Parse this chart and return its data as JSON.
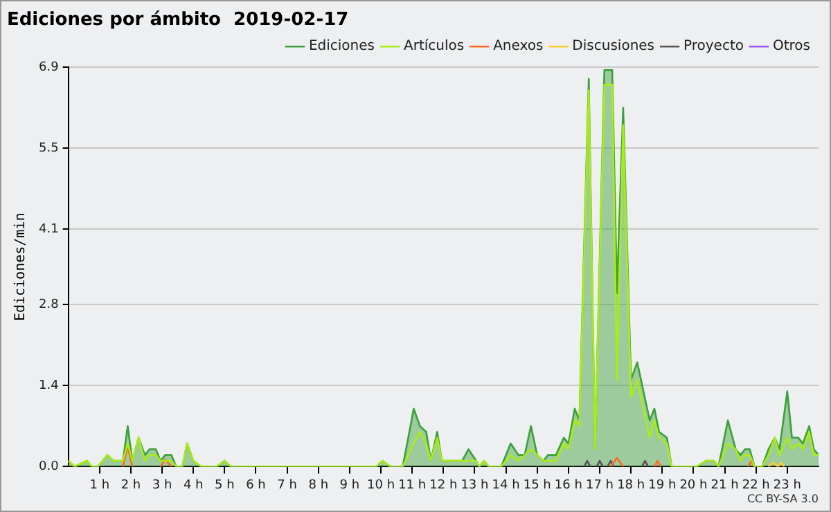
{
  "chart_data": {
    "type": "line",
    "title": "Ediciones por ámbito  2019-02-17",
    "ylabel": "Ediciones/min",
    "xlim": [
      0,
      24
    ],
    "xticks": [
      {
        "value": 1,
        "label": "1 h"
      },
      {
        "value": 2,
        "label": "2 h"
      },
      {
        "value": 3,
        "label": "3 h"
      },
      {
        "value": 4,
        "label": "4 h"
      },
      {
        "value": 5,
        "label": "5 h"
      },
      {
        "value": 6,
        "label": "6 h"
      },
      {
        "value": 7,
        "label": "7 h"
      },
      {
        "value": 8,
        "label": "8 h"
      },
      {
        "value": 9,
        "label": "9 h"
      },
      {
        "value": 10,
        "label": "10 h"
      },
      {
        "value": 11,
        "label": "11 h"
      },
      {
        "value": 12,
        "label": "12 h"
      },
      {
        "value": 13,
        "label": "13 h"
      },
      {
        "value": 14,
        "label": "14 h"
      },
      {
        "value": 15,
        "label": "15 h"
      },
      {
        "value": 16,
        "label": "16 h"
      },
      {
        "value": 17,
        "label": "17 h"
      },
      {
        "value": 18,
        "label": "18 h"
      },
      {
        "value": 19,
        "label": "19 h"
      },
      {
        "value": 20,
        "label": "20 h"
      },
      {
        "value": 21,
        "label": "21 h"
      },
      {
        "value": 22,
        "label": "22 h"
      },
      {
        "value": 23,
        "label": "23 h"
      }
    ],
    "ylim": [
      0,
      6.9
    ],
    "yticks": [
      {
        "value": 0,
        "label": "0.0"
      },
      1.4,
      2.8,
      4.1,
      5.5,
      6.9
    ],
    "grid": "y",
    "legend": "top right",
    "marker": "none",
    "annotations": [
      "CC BY-SA 3.0"
    ],
    "series": [
      {
        "name": "Ediciones",
        "type": "area",
        "color": "#3aa03a",
        "x": [
          0,
          0.2,
          0.6,
          0.75,
          0.95,
          1.25,
          1.45,
          1.75,
          1.9,
          2.05,
          2.25,
          2.45,
          2.6,
          2.8,
          2.95,
          3.1,
          3.3,
          3.45,
          3.65,
          3.8,
          4,
          4.25,
          4.75,
          5,
          5.2,
          9.85,
          10.05,
          10.3,
          10.7,
          11.05,
          11.25,
          11.45,
          11.6,
          11.8,
          11.95,
          12.6,
          12.8,
          13.05,
          13.15,
          13.3,
          13.45,
          13.85,
          14.15,
          14.4,
          14.6,
          14.8,
          15,
          15.2,
          15.35,
          15.6,
          15.85,
          16,
          16.2,
          16.35,
          16.65,
          16.85,
          17.15,
          17.4,
          17.55,
          17.75,
          18,
          18.2,
          18.6,
          18.75,
          18.9,
          19.15,
          19.3,
          20.1,
          20.4,
          20.65,
          20.8,
          21.1,
          21.35,
          21.5,
          21.65,
          21.8,
          21.95,
          22.2,
          22.4,
          22.6,
          22.75,
          23,
          23.15,
          23.35,
          23.5,
          23.7,
          23.85,
          24
        ],
        "values": [
          0.1,
          0,
          0.1,
          0,
          0,
          0.2,
          0.1,
          0.1,
          0.7,
          0.1,
          0.5,
          0.2,
          0.3,
          0.3,
          0.1,
          0.2,
          0.2,
          0,
          0,
          0.4,
          0.1,
          0,
          0,
          0.1,
          0,
          0,
          0.1,
          0,
          0,
          1.0,
          0.7,
          0.6,
          0.1,
          0.6,
          0.1,
          0.1,
          0.3,
          0.1,
          0,
          0.1,
          0,
          0,
          0.4,
          0.2,
          0.2,
          0.7,
          0.2,
          0.1,
          0.2,
          0.2,
          0.5,
          0.4,
          1.0,
          0.8,
          6.7,
          0.3,
          6.85,
          6.85,
          3.0,
          6.2,
          1.5,
          1.8,
          0.8,
          1.0,
          0.6,
          0.5,
          0,
          0,
          0.1,
          0.1,
          0,
          0.8,
          0.3,
          0.2,
          0.3,
          0.3,
          0,
          0,
          0.3,
          0.5,
          0.3,
          1.3,
          0.5,
          0.5,
          0.4,
          0.7,
          0.3,
          0.2
        ]
      },
      {
        "name": "Artículos",
        "color": "#aaee11",
        "x": [
          0,
          0.2,
          0.6,
          0.75,
          0.95,
          1.25,
          1.45,
          1.75,
          1.9,
          2.05,
          2.25,
          2.45,
          2.6,
          2.8,
          2.95,
          3.3,
          3.45,
          3.65,
          3.8,
          4,
          4.25,
          4.75,
          5,
          5.2,
          9.85,
          10.05,
          10.3,
          10.7,
          11.05,
          11.25,
          11.45,
          11.6,
          11.8,
          11.95,
          12.6,
          13.05,
          13.15,
          13.3,
          13.45,
          13.85,
          14.15,
          14.4,
          14.6,
          14.8,
          15,
          15.2,
          15.35,
          15.6,
          15.85,
          16,
          16.2,
          16.35,
          16.65,
          16.85,
          17.15,
          17.4,
          17.55,
          17.75,
          18,
          18.2,
          18.6,
          18.75,
          18.9,
          19.15,
          19.3,
          20.1,
          20.4,
          20.65,
          20.8,
          21.1,
          21.35,
          21.5,
          21.65,
          21.8,
          21.95,
          22.2,
          22.4,
          22.6,
          22.75,
          23,
          23.15,
          23.35,
          23.5,
          23.7,
          23.85,
          24
        ],
        "values": [
          0.1,
          0,
          0.1,
          0,
          0,
          0.2,
          0.1,
          0.1,
          0.4,
          0.1,
          0.5,
          0.1,
          0.2,
          0.2,
          0.1,
          0.1,
          0,
          0,
          0.4,
          0.1,
          0,
          0,
          0.1,
          0,
          0,
          0.1,
          0,
          0,
          0.4,
          0.6,
          0.4,
          0.1,
          0.5,
          0.1,
          0.1,
          0.1,
          0,
          0.1,
          0,
          0,
          0.2,
          0.1,
          0.2,
          0.3,
          0.2,
          0.1,
          0.1,
          0.1,
          0.4,
          0.3,
          0.8,
          0.7,
          6.5,
          0.3,
          6.6,
          6.6,
          1.5,
          5.9,
          1.2,
          1.5,
          0.5,
          0.8,
          0.5,
          0.4,
          0,
          0,
          0.1,
          0.1,
          0,
          0.4,
          0.3,
          0.1,
          0.2,
          0.2,
          0,
          0,
          0.2,
          0.5,
          0.2,
          0.5,
          0.3,
          0.4,
          0.3,
          0.6,
          0.2,
          0.2
        ]
      },
      {
        "name": "Anexos",
        "color": "#ff6622",
        "x": [
          1.75,
          1.9,
          2.05,
          2.5,
          2.95,
          3.1,
          3.3,
          10,
          17.35,
          17.55,
          17.75,
          18.2,
          18.75,
          18.85,
          18.95,
          20,
          21.75,
          21.85,
          21.95
        ],
        "values": [
          0,
          0.35,
          0,
          null,
          0,
          0.12,
          0,
          null,
          0,
          0.15,
          0,
          null,
          0,
          0.1,
          0,
          null,
          0,
          0.1,
          0
        ]
      },
      {
        "name": "Discusiones",
        "color": "#ffcc33",
        "x": [
          22.4,
          22.55,
          22.7,
          22.8,
          22.9
        ],
        "values": [
          0,
          0.07,
          0,
          0.07,
          0
        ]
      },
      {
        "name": "Proyecto",
        "color": "#555555",
        "x": [
          16.5,
          16.6,
          16.7,
          16.8,
          16.9,
          17,
          17.1,
          17.2,
          17.25,
          17.35,
          17.45,
          18,
          18.35,
          18.45,
          18.55
        ],
        "values": [
          0,
          0.1,
          0,
          null,
          0,
          0.1,
          0,
          null,
          0,
          0.1,
          0,
          null,
          0,
          0.1,
          0
        ]
      },
      {
        "name": "Otros",
        "color": "#9955ee"
      }
    ]
  }
}
